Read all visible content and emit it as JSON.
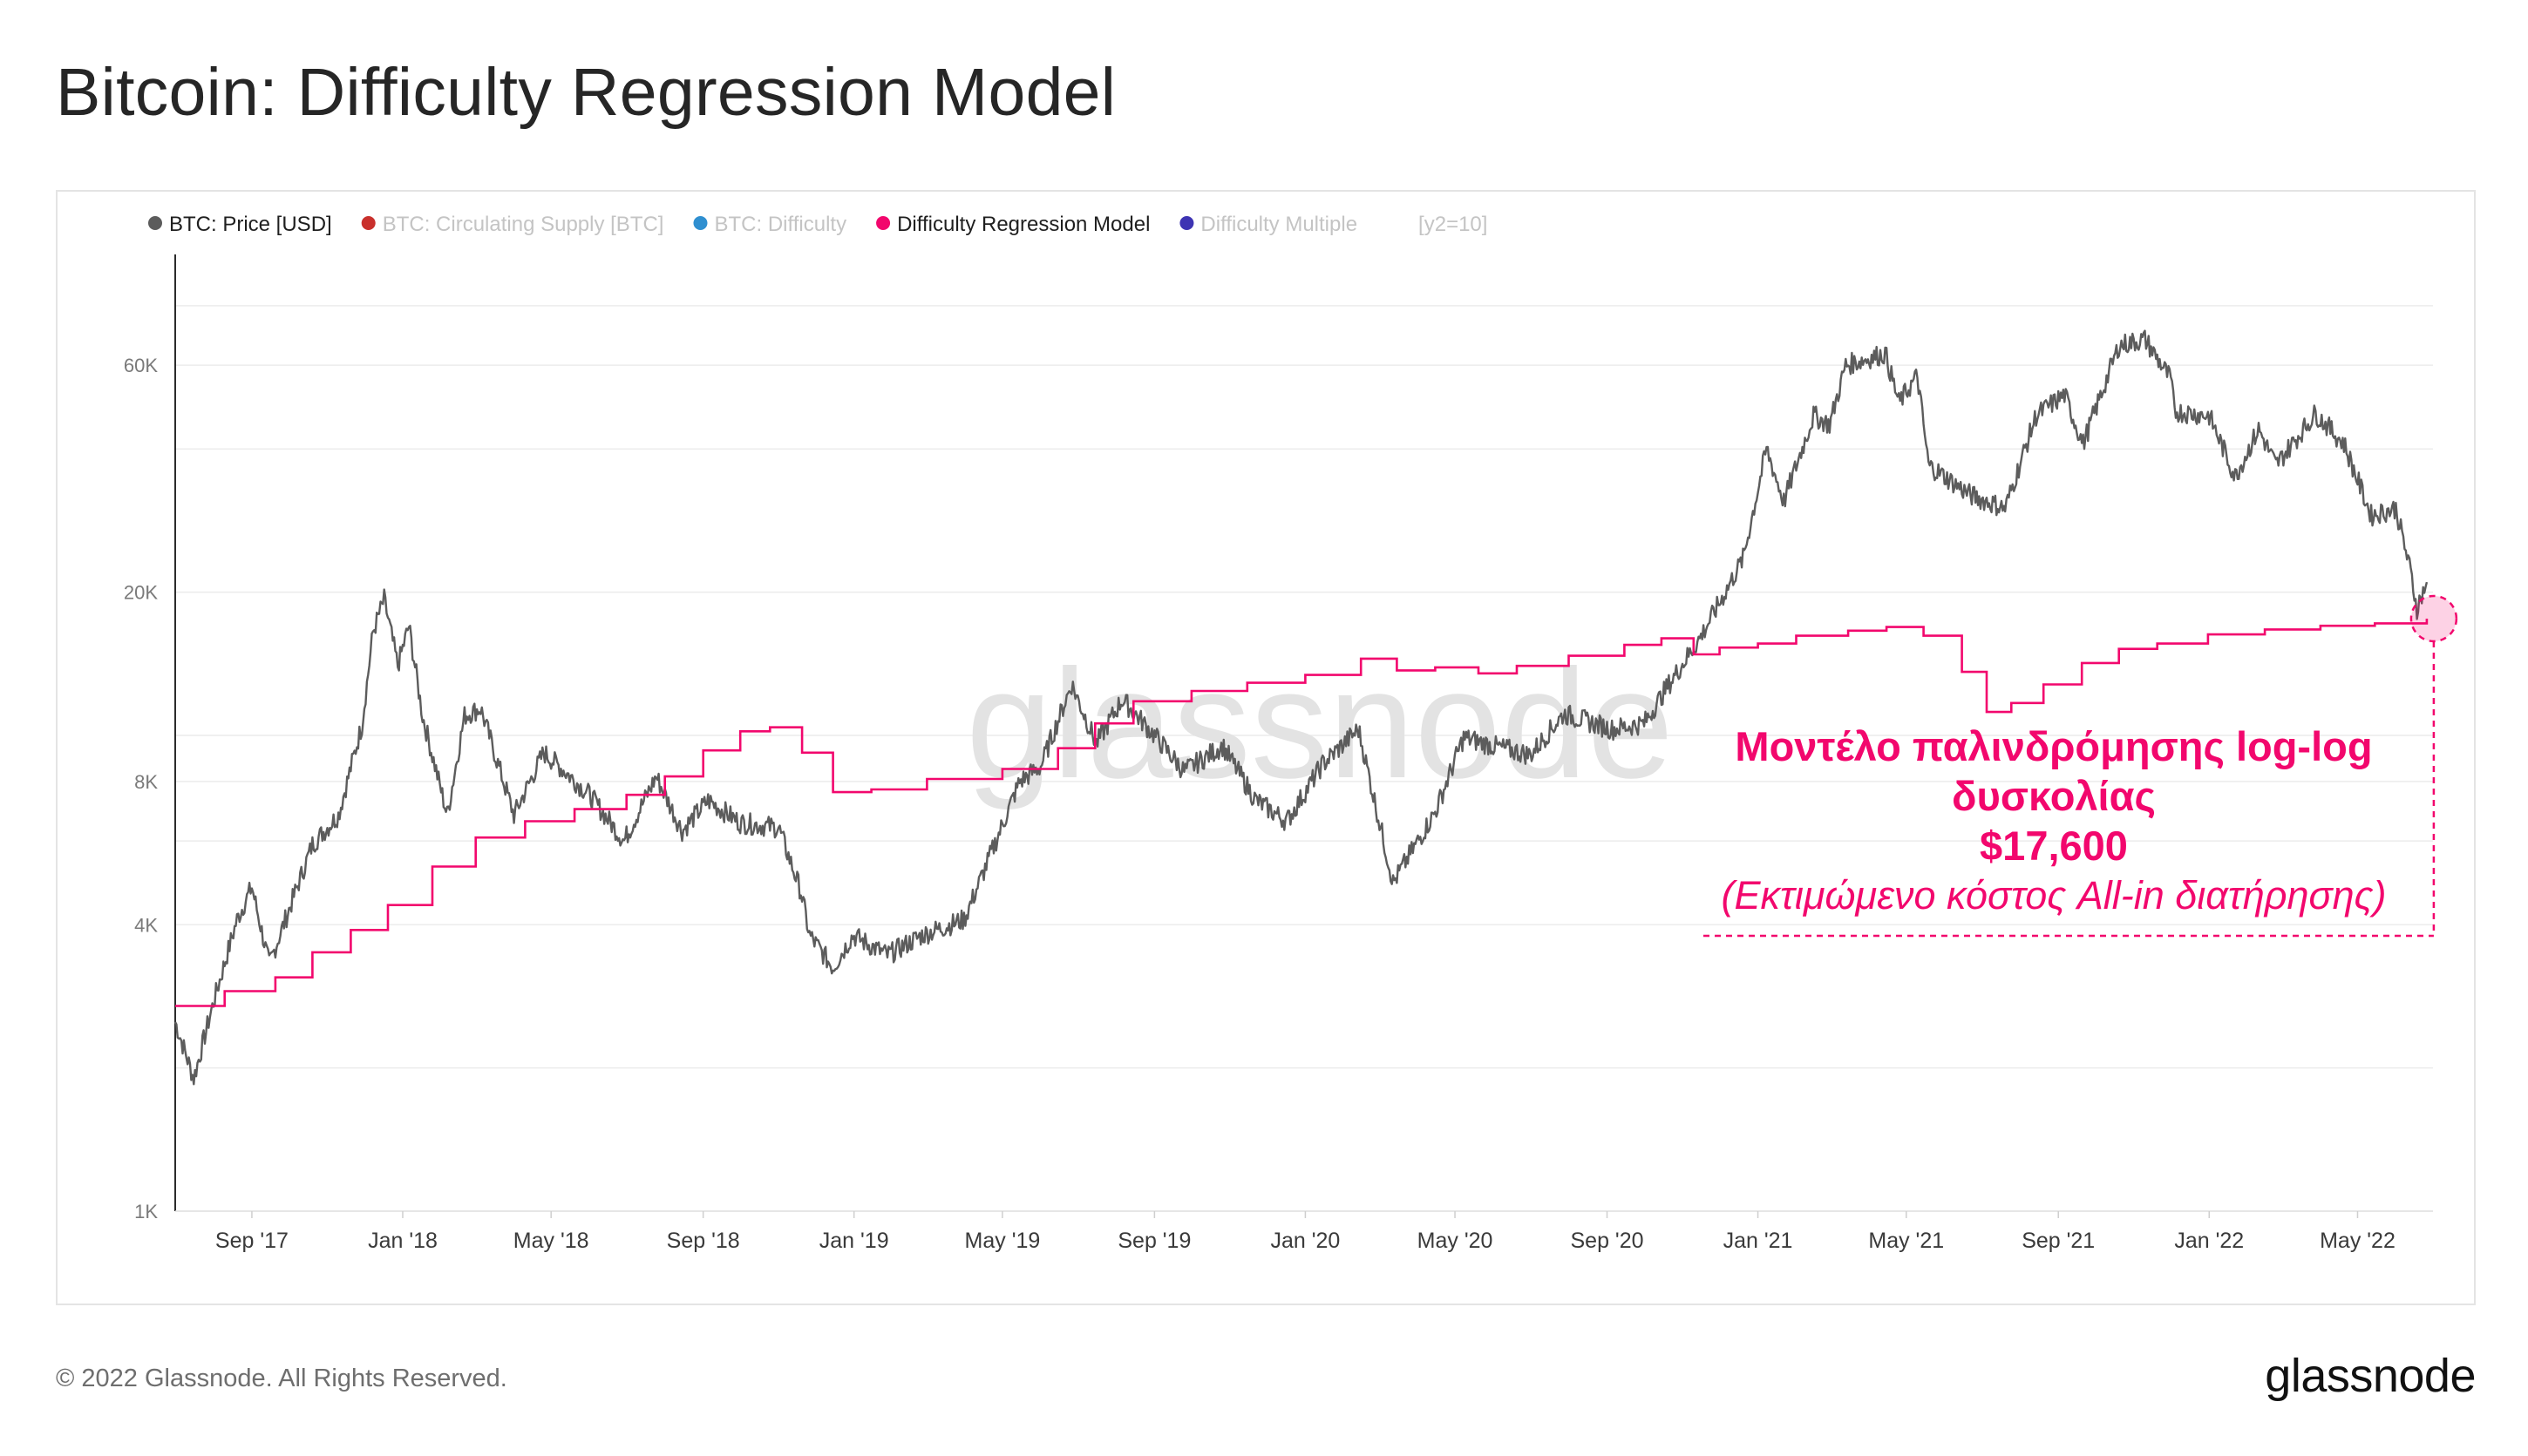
{
  "header": {
    "title": "Bitcoin: Difficulty Regression Model"
  },
  "legend": [
    {
      "label": "BTC: Price [USD]",
      "color": "#5c5c5c",
      "active": true
    },
    {
      "label": "BTC: Circulating Supply [BTC]",
      "color": "#c9302c",
      "active": false
    },
    {
      "label": "BTC: Difficulty",
      "color": "#2f8fd0",
      "active": false
    },
    {
      "label": "Difficulty Regression Model",
      "color": "#f2076d",
      "active": true
    },
    {
      "label": "Difficulty Multiple",
      "color": "#3e34b3",
      "active": false
    }
  ],
  "legend_extra": "[y2=10]",
  "watermark": "glassnode",
  "annotation": {
    "line1": "Μοντέλο παλινδρόμησης log-log",
    "line2": "δυσκολίας",
    "value": "$17,600",
    "note": "(Εκτιμώμενο κόστος All-in διατήρησης)",
    "color": "#f2076d"
  },
  "footer": {
    "copyright": "© 2022 Glassnode. All Rights Reserved.",
    "logo": "glassnode"
  },
  "chart_data": {
    "type": "line",
    "title": "Bitcoin: Difficulty Regression Model",
    "y_scale": "log",
    "ylim": [
      1000,
      100000
    ],
    "y_ticks": [
      {
        "value": 1000,
        "label": "1K"
      },
      {
        "value": 4000,
        "label": "4K"
      },
      {
        "value": 8000,
        "label": "8K"
      },
      {
        "value": 20000,
        "label": "20K"
      },
      {
        "value": 60000,
        "label": "60K"
      }
    ],
    "xlim": [
      "2017-07-01",
      "2022-07-01"
    ],
    "x_ticks": [
      {
        "date": "2017-09-01",
        "label": "Sep '17"
      },
      {
        "date": "2018-01-01",
        "label": "Jan '18"
      },
      {
        "date": "2018-05-01",
        "label": "May '18"
      },
      {
        "date": "2018-09-01",
        "label": "Sep '18"
      },
      {
        "date": "2019-01-01",
        "label": "Jan '19"
      },
      {
        "date": "2019-05-01",
        "label": "May '19"
      },
      {
        "date": "2019-09-01",
        "label": "Sep '19"
      },
      {
        "date": "2020-01-01",
        "label": "Jan '20"
      },
      {
        "date": "2020-05-01",
        "label": "May '20"
      },
      {
        "date": "2020-09-01",
        "label": "Sep '20"
      },
      {
        "date": "2021-01-01",
        "label": "Jan '21"
      },
      {
        "date": "2021-05-01",
        "label": "May '21"
      },
      {
        "date": "2021-09-01",
        "label": "Sep '21"
      },
      {
        "date": "2022-01-01",
        "label": "Jan '22"
      },
      {
        "date": "2022-05-01",
        "label": "May '22"
      }
    ],
    "series": [
      {
        "name": "BTC: Price [USD]",
        "color": "#5c5c5c",
        "points": [
          [
            "2017-07-01",
            2500
          ],
          [
            "2017-07-16",
            1900
          ],
          [
            "2017-08-01",
            2750
          ],
          [
            "2017-08-20",
            4100
          ],
          [
            "2017-09-01",
            4800
          ],
          [
            "2017-09-15",
            3300
          ],
          [
            "2017-10-01",
            4300
          ],
          [
            "2017-10-20",
            5900
          ],
          [
            "2017-11-10",
            6800
          ],
          [
            "2017-11-29",
            10500
          ],
          [
            "2017-12-08",
            16500
          ],
          [
            "2017-12-17",
            19300
          ],
          [
            "2017-12-28",
            14000
          ],
          [
            "2018-01-06",
            17000
          ],
          [
            "2018-01-17",
            11000
          ],
          [
            "2018-02-06",
            6800
          ],
          [
            "2018-02-20",
            11000
          ],
          [
            "2018-03-05",
            11400
          ],
          [
            "2018-04-01",
            6800
          ],
          [
            "2018-04-25",
            9200
          ],
          [
            "2018-05-10",
            8500
          ],
          [
            "2018-06-01",
            7500
          ],
          [
            "2018-06-29",
            6000
          ],
          [
            "2018-07-25",
            8200
          ],
          [
            "2018-08-15",
            6300
          ],
          [
            "2018-09-05",
            7300
          ],
          [
            "2018-10-01",
            6550
          ],
          [
            "2018-11-01",
            6400
          ],
          [
            "2018-11-19",
            4700
          ],
          [
            "2018-11-26",
            3800
          ],
          [
            "2018-12-15",
            3250
          ],
          [
            "2018-12-31",
            3800
          ],
          [
            "2019-01-28",
            3450
          ],
          [
            "2019-02-25",
            3800
          ],
          [
            "2019-03-31",
            4100
          ],
          [
            "2019-04-15",
            5100
          ],
          [
            "2019-05-15",
            8000
          ],
          [
            "2019-06-01",
            8600
          ],
          [
            "2019-06-26",
            12800
          ],
          [
            "2019-07-16",
            9600
          ],
          [
            "2019-08-06",
            11900
          ],
          [
            "2019-09-01",
            10000
          ],
          [
            "2019-09-25",
            8400
          ],
          [
            "2019-10-26",
            9500
          ],
          [
            "2019-11-22",
            7300
          ],
          [
            "2019-12-17",
            6600
          ],
          [
            "2020-01-15",
            8700
          ],
          [
            "2020-02-13",
            10300
          ],
          [
            "2020-03-12",
            4900
          ],
          [
            "2020-04-15",
            6900
          ],
          [
            "2020-05-08",
            9900
          ],
          [
            "2020-06-01",
            9500
          ],
          [
            "2020-07-01",
            9100
          ],
          [
            "2020-07-28",
            11100
          ],
          [
            "2020-09-05",
            10300
          ],
          [
            "2020-10-01",
            10600
          ],
          [
            "2020-10-21",
            12800
          ],
          [
            "2020-11-15",
            16000
          ],
          [
            "2020-12-01",
            19000
          ],
          [
            "2020-12-20",
            23500
          ],
          [
            "2021-01-08",
            40000
          ],
          [
            "2021-01-22",
            31000
          ],
          [
            "2021-02-15",
            47000
          ],
          [
            "2021-02-28",
            45000
          ],
          [
            "2021-03-13",
            60000
          ],
          [
            "2021-04-14",
            63500
          ],
          [
            "2021-04-25",
            50000
          ],
          [
            "2021-05-10",
            57000
          ],
          [
            "2021-05-19",
            37000
          ],
          [
            "2021-06-22",
            32000
          ],
          [
            "2021-07-20",
            30000
          ],
          [
            "2021-08-14",
            47000
          ],
          [
            "2021-09-06",
            52000
          ],
          [
            "2021-09-21",
            41000
          ],
          [
            "2021-10-20",
            66000
          ],
          [
            "2021-11-10",
            68000
          ],
          [
            "2021-12-01",
            56000
          ],
          [
            "2021-12-04",
            48000
          ],
          [
            "2022-01-01",
            47000
          ],
          [
            "2022-01-22",
            35000
          ],
          [
            "2022-02-10",
            44000
          ],
          [
            "2022-02-24",
            37000
          ],
          [
            "2022-03-28",
            47500
          ],
          [
            "2022-04-20",
            41000
          ],
          [
            "2022-05-12",
            29000
          ],
          [
            "2022-06-01",
            30000
          ],
          [
            "2022-06-13",
            22000
          ],
          [
            "2022-06-18",
            18500
          ],
          [
            "2022-06-26",
            21000
          ]
        ]
      },
      {
        "name": "Difficulty Regression Model",
        "color": "#f2076d",
        "points": [
          [
            "2017-07-01",
            2700
          ],
          [
            "2017-08-10",
            2900
          ],
          [
            "2017-09-20",
            3100
          ],
          [
            "2017-10-20",
            3500
          ],
          [
            "2017-11-20",
            3900
          ],
          [
            "2017-12-20",
            4400
          ],
          [
            "2018-01-25",
            5300
          ],
          [
            "2018-03-01",
            6100
          ],
          [
            "2018-04-10",
            6600
          ],
          [
            "2018-05-20",
            7000
          ],
          [
            "2018-07-01",
            7500
          ],
          [
            "2018-08-01",
            8200
          ],
          [
            "2018-09-01",
            9300
          ],
          [
            "2018-10-01",
            10200
          ],
          [
            "2018-10-25",
            10400
          ],
          [
            "2018-11-20",
            9200
          ],
          [
            "2018-12-15",
            7600
          ],
          [
            "2019-01-15",
            7700
          ],
          [
            "2019-03-01",
            8100
          ],
          [
            "2019-05-01",
            8500
          ],
          [
            "2019-06-15",
            9400
          ],
          [
            "2019-07-15",
            10600
          ],
          [
            "2019-08-15",
            11800
          ],
          [
            "2019-10-01",
            12400
          ],
          [
            "2019-11-15",
            12900
          ],
          [
            "2020-01-01",
            13400
          ],
          [
            "2020-02-15",
            14500
          ],
          [
            "2020-03-15",
            13700
          ],
          [
            "2020-04-15",
            13900
          ],
          [
            "2020-05-20",
            13500
          ],
          [
            "2020-06-20",
            14000
          ],
          [
            "2020-08-01",
            14700
          ],
          [
            "2020-09-15",
            15500
          ],
          [
            "2020-10-15",
            16000
          ],
          [
            "2020-11-10",
            14800
          ],
          [
            "2020-12-01",
            15300
          ],
          [
            "2021-01-01",
            15600
          ],
          [
            "2021-02-01",
            16200
          ],
          [
            "2021-03-15",
            16600
          ],
          [
            "2021-04-15",
            16900
          ],
          [
            "2021-05-15",
            16200
          ],
          [
            "2021-06-15",
            13600
          ],
          [
            "2021-07-05",
            11200
          ],
          [
            "2021-07-25",
            11700
          ],
          [
            "2021-08-20",
            12800
          ],
          [
            "2021-09-20",
            14200
          ],
          [
            "2021-10-20",
            15200
          ],
          [
            "2021-11-20",
            15600
          ],
          [
            "2021-12-31",
            16300
          ],
          [
            "2022-02-15",
            16700
          ],
          [
            "2022-04-01",
            17000
          ],
          [
            "2022-05-15",
            17200
          ],
          [
            "2022-06-26",
            17600
          ]
        ]
      }
    ]
  }
}
